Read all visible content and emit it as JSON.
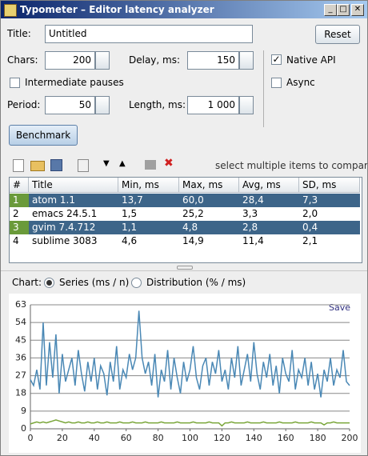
{
  "window": {
    "title": "Typometer – Editor latency analyzer"
  },
  "form": {
    "title_label": "Title:",
    "title_value": "Untitled",
    "reset": "Reset",
    "chars_label": "Chars:",
    "chars_value": "200",
    "delay_label": "Delay, ms:",
    "delay_value": "150",
    "native_api": {
      "label": "Native API",
      "checked": true
    },
    "intermediate_pauses": {
      "label": "Intermediate pauses",
      "checked": false
    },
    "async": {
      "label": "Async",
      "checked": false
    },
    "period_label": "Period:",
    "period_value": "50",
    "length_label": "Length, ms:",
    "length_value": "1 000",
    "benchmark": "Benchmark"
  },
  "toolbar": {
    "hint": "select multiple items to compare"
  },
  "table": {
    "columns": [
      "#",
      "Title",
      "Min, ms",
      "Max, ms",
      "Avg, ms",
      "SD, ms"
    ],
    "rows": [
      [
        "1",
        "atom 1.1",
        "13,7",
        "60,0",
        "28,4",
        "7,3"
      ],
      [
        "2",
        "emacs 24.5.1",
        "1,5",
        "25,2",
        "3,3",
        "2,0"
      ],
      [
        "3",
        "gvim 7.4.712",
        "1,1",
        "4,8",
        "2,8",
        "0,4"
      ],
      [
        "4",
        "sublime 3083",
        "4,6",
        "14,9",
        "11,4",
        "2,1"
      ]
    ],
    "selected_rows": [
      0,
      2
    ]
  },
  "chart_options": {
    "label": "Chart:",
    "series": {
      "label": "Series (ms / n)",
      "checked": true
    },
    "distribution": {
      "label": "Distribution (% / ms)",
      "checked": false
    },
    "save": "Save"
  },
  "chart_data": {
    "type": "line",
    "x": [
      0,
      2,
      4,
      6,
      8,
      10,
      12,
      14,
      16,
      18,
      20,
      22,
      24,
      26,
      28,
      30,
      32,
      34,
      36,
      38,
      40,
      42,
      44,
      46,
      48,
      50,
      52,
      54,
      56,
      58,
      60,
      62,
      64,
      66,
      68,
      70,
      72,
      74,
      76,
      78,
      80,
      82,
      84,
      86,
      88,
      90,
      92,
      94,
      96,
      98,
      100,
      102,
      104,
      106,
      108,
      110,
      112,
      114,
      116,
      118,
      120,
      122,
      124,
      126,
      128,
      130,
      132,
      134,
      136,
      138,
      140,
      142,
      144,
      146,
      148,
      150,
      152,
      154,
      156,
      158,
      160,
      162,
      164,
      166,
      168,
      170,
      172,
      174,
      176,
      178,
      180,
      182,
      184,
      186,
      188,
      190,
      192,
      194,
      196,
      198,
      200
    ],
    "series": [
      {
        "color": "#4a88b5",
        "values": [
          25,
          22,
          30,
          20,
          54,
          22,
          44,
          26,
          48,
          18,
          38,
          24,
          30,
          36,
          22,
          40,
          28,
          19,
          34,
          24,
          36,
          20,
          32,
          28,
          17,
          34,
          24,
          42,
          20,
          30,
          26,
          38,
          30,
          36,
          60,
          36,
          28,
          34,
          22,
          38,
          16,
          30,
          24,
          40,
          20,
          36,
          26,
          18,
          34,
          24,
          30,
          42,
          26,
          20,
          32,
          36,
          22,
          34,
          28,
          40,
          24,
          30,
          20,
          36,
          26,
          42,
          22,
          30,
          38,
          24,
          44,
          28,
          20,
          34,
          26,
          38,
          22,
          32,
          18,
          36,
          28,
          24,
          40,
          20,
          30,
          26,
          36,
          22,
          34,
          20,
          28,
          16,
          30,
          24,
          36,
          22,
          30,
          26,
          40,
          24,
          22
        ]
      },
      {
        "color": "#7aa63a",
        "values": [
          2.5,
          3,
          3.5,
          3,
          3.5,
          3,
          3.5,
          4,
          4.5,
          4,
          3.5,
          3,
          3.5,
          3,
          3,
          3.5,
          3,
          3,
          3.5,
          3,
          3,
          3.5,
          3,
          3,
          3.5,
          3,
          3,
          3,
          3.5,
          3,
          3,
          3,
          3.5,
          3,
          3,
          3,
          3.5,
          3,
          3,
          3,
          3,
          3.5,
          3,
          3,
          3,
          3,
          3.5,
          3,
          3,
          3,
          3,
          3.5,
          3,
          3,
          3,
          3,
          3.5,
          3,
          3,
          3,
          1.5,
          3,
          3,
          3.5,
          3,
          3,
          3,
          3,
          3.5,
          3,
          3,
          3,
          3,
          3.5,
          3,
          3,
          3,
          3,
          3.5,
          3,
          3,
          3,
          3,
          3.5,
          3,
          3,
          3,
          3,
          3.5,
          3,
          3,
          3,
          2,
          3,
          3,
          3.5,
          3,
          3,
          3,
          3,
          3
        ]
      }
    ],
    "xlim": [
      0,
      200
    ],
    "ylim": [
      0,
      63
    ],
    "xticks": [
      0,
      20,
      40,
      60,
      80,
      100,
      120,
      140,
      160,
      180,
      200
    ],
    "yticks": [
      0,
      9,
      18,
      27,
      36,
      45,
      54,
      63
    ],
    "grid": true
  }
}
